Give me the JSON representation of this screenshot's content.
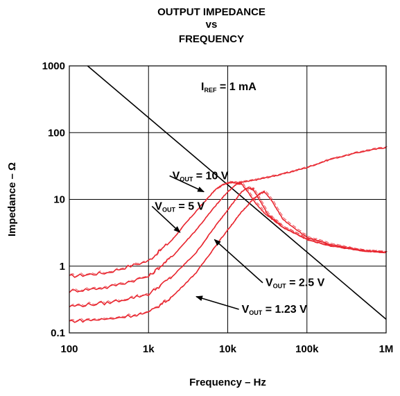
{
  "chart_data": {
    "type": "line",
    "title": [
      "OUTPUT IMPEDANCE",
      "vs",
      "FREQUENCY"
    ],
    "xlabel": "Frequency – Hz",
    "ylabel": "Impedance – Ω",
    "x_scale": "log",
    "y_scale": "log",
    "xlim": [
      100,
      1000000
    ],
    "ylim": [
      0.1,
      1000
    ],
    "grid": true,
    "x_ticks": [
      {
        "value": 100,
        "label": "100"
      },
      {
        "value": 1000,
        "label": "1k"
      },
      {
        "value": 10000,
        "label": "10k"
      },
      {
        "value": 100000,
        "label": "100k"
      },
      {
        "value": 1000000,
        "label": "1M"
      }
    ],
    "y_ticks": [
      {
        "value": 0.1,
        "label": "0.1"
      },
      {
        "value": 1,
        "label": "1"
      },
      {
        "value": 10,
        "label": "10"
      },
      {
        "value": 100,
        "label": "100"
      },
      {
        "value": 1000,
        "label": "1000"
      }
    ],
    "condition": {
      "main": "I",
      "sub": "REF",
      "rest": " = 1 mA"
    },
    "colors": {
      "curves": "#e8262f",
      "reference_line": "#000000",
      "grid": "#000000"
    },
    "reference_line": {
      "x": [
        170,
        1000000
      ],
      "y": [
        1000,
        0.16
      ]
    },
    "series": [
      {
        "name_main": "V",
        "name_sub": "OUT",
        "name_rest": " = 10 V",
        "x": [
          100,
          300,
          1000,
          2000,
          3000,
          5000,
          7000,
          9000,
          11000,
          13000,
          15000,
          20000,
          30000,
          50000,
          100000,
          200000,
          500000,
          1000000
        ],
        "y": [
          0.7,
          0.8,
          1.2,
          2.5,
          4.5,
          9,
          14,
          17,
          18,
          17.5,
          18,
          19,
          21,
          24,
          30,
          40,
          52,
          60
        ]
      },
      {
        "name_main": "V",
        "name_sub": "OUT",
        "name_rest": " = 5 V",
        "x": [
          100,
          300,
          1000,
          2000,
          4000,
          7000,
          10000,
          13000,
          15000,
          18000,
          22000,
          30000,
          50000,
          100000,
          200000,
          500000,
          1000000
        ],
        "y": [
          0.42,
          0.48,
          0.7,
          1.4,
          3.5,
          8,
          13,
          17,
          17,
          13,
          9,
          6,
          3.8,
          2.5,
          2,
          1.7,
          1.6
        ]
      },
      {
        "name_main": "V",
        "name_sub": "OUT",
        "name_rest": " = 2.5 V",
        "x": [
          100,
          300,
          1000,
          2000,
          4000,
          7000,
          10000,
          15000,
          18000,
          21000,
          25000,
          32000,
          50000,
          100000,
          200000,
          500000,
          1000000
        ],
        "y": [
          0.25,
          0.28,
          0.38,
          0.7,
          1.6,
          4,
          7,
          13,
          15,
          14,
          10,
          6,
          3.8,
          2.5,
          2,
          1.7,
          1.6
        ]
      },
      {
        "name_main": "V",
        "name_sub": "OUT",
        "name_rest": " = 1.23 V",
        "x": [
          100,
          300,
          1000,
          2000,
          4000,
          7000,
          10000,
          15000,
          20000,
          25000,
          29000,
          35000,
          50000,
          100000,
          200000,
          500000,
          1000000
        ],
        "y": [
          0.15,
          0.16,
          0.2,
          0.35,
          0.8,
          2,
          3.5,
          6.5,
          9.5,
          12,
          13,
          10,
          5,
          2.7,
          2.1,
          1.7,
          1.6
        ]
      }
    ],
    "annotations": [
      {
        "series": 0,
        "text_x": 2000,
        "text_y": 20,
        "arrow_to_x": 5000,
        "arrow_to_y": 13
      },
      {
        "series": 1,
        "text_x": 1200,
        "text_y": 7,
        "arrow_to_x": 2500,
        "arrow_to_y": 3.2
      },
      {
        "series": 2,
        "text_x": 30000,
        "text_y": 0.5,
        "arrow_to_x": 6800,
        "arrow_to_y": 2.5
      },
      {
        "series": 3,
        "text_x": 15000,
        "text_y": 0.2,
        "arrow_to_x": 4000,
        "arrow_to_y": 0.35
      }
    ]
  }
}
